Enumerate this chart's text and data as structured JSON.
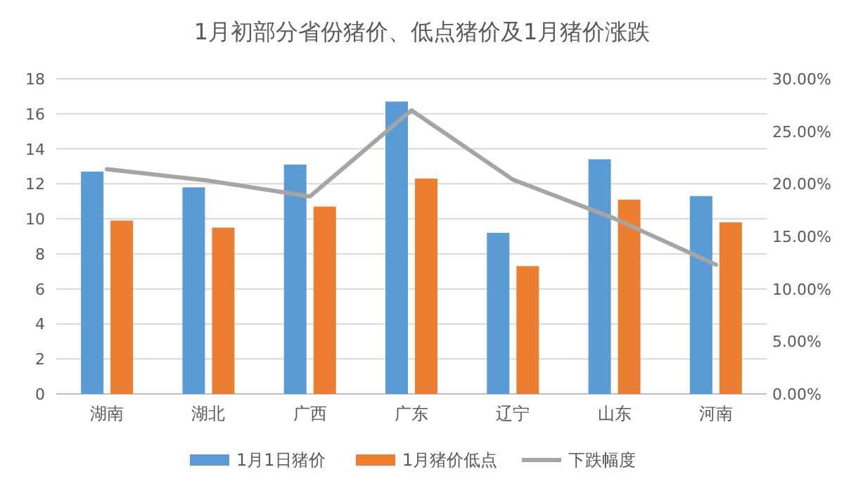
{
  "chart_data": {
    "type": "bar",
    "title": "1月初部分省份猪价、低点猪价及1月猪价涨跌",
    "categories": [
      "湖南",
      "湖北",
      "广西",
      "广东",
      "辽宁",
      "山东",
      "河南"
    ],
    "series": [
      {
        "name": "1月1日猪价",
        "color": "#5b9bd5",
        "values": [
          12.7,
          11.8,
          13.1,
          16.7,
          9.2,
          13.4,
          11.3
        ]
      },
      {
        "name": "1月猪价低点",
        "color": "#ed7d31",
        "values": [
          9.9,
          9.5,
          10.7,
          12.3,
          7.3,
          11.1,
          9.8
        ]
      },
      {
        "name": "下跌幅度",
        "type": "line",
        "axis": "y2",
        "color": "#a5a5a5",
        "values": [
          21.4,
          20.3,
          18.8,
          27.0,
          20.4,
          16.7,
          12.3
        ]
      }
    ],
    "ylim": [
      0,
      18
    ],
    "yticks": [
      0,
      2,
      4,
      6,
      8,
      10,
      12,
      14,
      16,
      18
    ],
    "y2lim": [
      0,
      30
    ],
    "y2ticks": [
      {
        "value": 0,
        "label": "0.00%"
      },
      {
        "value": 5,
        "label": "5.00%"
      },
      {
        "value": 10,
        "label": "10.00%"
      },
      {
        "value": 15,
        "label": "15.00%"
      },
      {
        "value": 20,
        "label": "20.00%"
      },
      {
        "value": 25,
        "label": "25.00%"
      },
      {
        "value": 30,
        "label": "30.00%"
      }
    ],
    "grid": "y",
    "legend": "bottom"
  }
}
